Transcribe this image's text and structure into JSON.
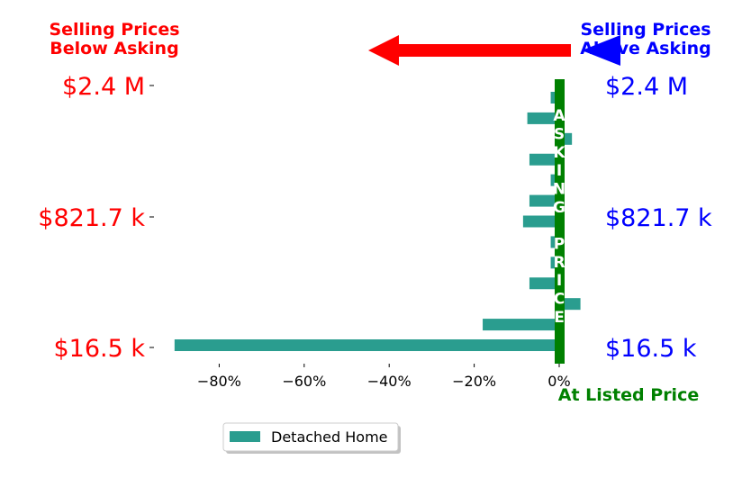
{
  "chart_data": {
    "type": "bar",
    "orientation": "horizontal",
    "series": [
      {
        "name": "Detached Home",
        "color": "#2a9d8f",
        "values": [
          -90.5,
          -18,
          5,
          -7,
          -2,
          -2,
          -8.5,
          -7,
          -2,
          -7,
          3,
          -7.5,
          -2
        ]
      }
    ],
    "xlim": [
      -96,
      5.5
    ],
    "x_ticks": [
      {
        "value": -80,
        "label": "−80%"
      },
      {
        "value": -60,
        "label": "−60%"
      },
      {
        "value": -40,
        "label": "−40%"
      },
      {
        "value": -20,
        "label": "−20%"
      },
      {
        "value": 0,
        "label": "0%"
      }
    ],
    "y_ticks_left": [
      "$2.4 M",
      "$821.7 k",
      "$16.5 k"
    ],
    "y_ticks_right": [
      "$2.4 M",
      "$821.7 k",
      "$16.5 k"
    ],
    "annotations": {
      "below_label": "Selling Prices\nBelow Asking",
      "above_label": "Selling Prices\nAbove Asking",
      "at_listed": "At Listed Price",
      "vertical_text": "ASKING PRICE"
    },
    "colors": {
      "below": "#ff0000",
      "above": "#0000ff",
      "asking_line": "#008000",
      "bar": "#2a9d8f"
    },
    "legend": {
      "placement": "bottom-center",
      "entries": [
        "Detached Home"
      ]
    }
  }
}
